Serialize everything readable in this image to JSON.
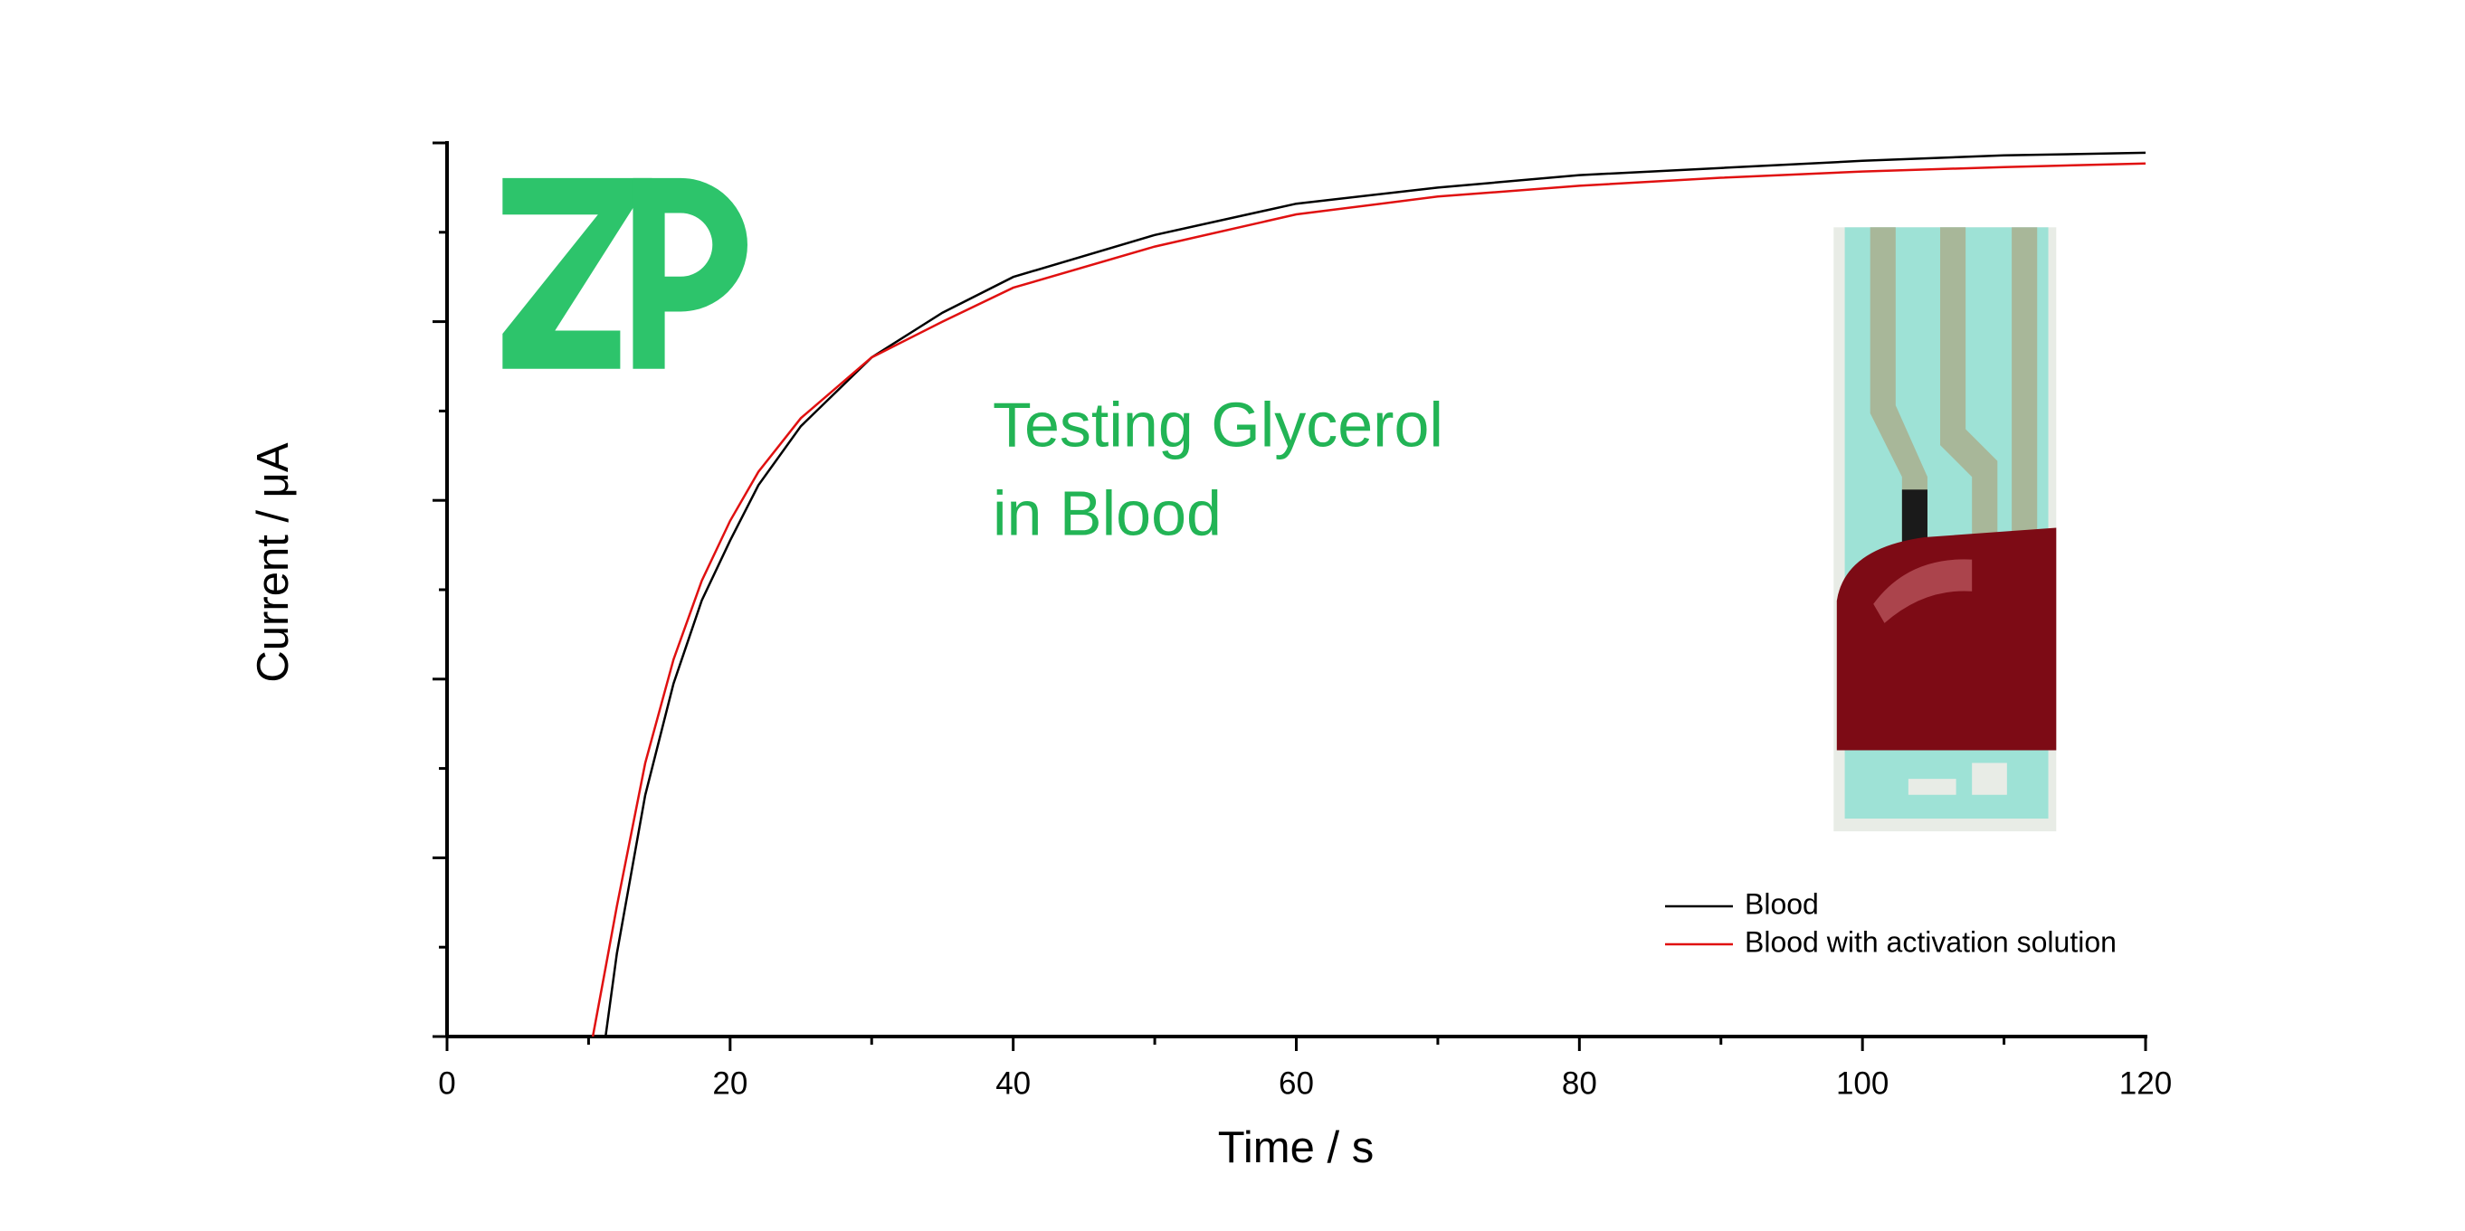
{
  "chart_data": {
    "type": "line",
    "annotation": [
      "Testing Glycerol",
      "in Blood"
    ],
    "xlabel": "Time / s",
    "ylabel": "Current / μA",
    "x": [
      10.3,
      11.2,
      12,
      14,
      16,
      18,
      20,
      22,
      25,
      30,
      35,
      40,
      50,
      60,
      70,
      80,
      90,
      100,
      110,
      120
    ],
    "series": [
      {
        "name": "Blood",
        "color": "#000000",
        "values": [
          null,
          0,
          0.93,
          2.7,
          3.95,
          4.88,
          5.55,
          6.17,
          6.83,
          7.6,
          8.1,
          8.5,
          8.97,
          9.32,
          9.5,
          9.64,
          9.72,
          9.8,
          9.86,
          9.89
        ]
      },
      {
        "name": "Blood with activation solution",
        "color": "#e01010",
        "values": [
          0,
          0.77,
          1.46,
          3.06,
          4.22,
          5.1,
          5.77,
          6.32,
          6.92,
          7.6,
          8.0,
          8.38,
          8.84,
          9.2,
          9.4,
          9.52,
          9.61,
          9.68,
          9.73,
          9.77
        ]
      }
    ],
    "xlim": [
      0,
      120
    ],
    "xticks": [
      0,
      20,
      40,
      60,
      80,
      100,
      120
    ],
    "ylim": [
      0,
      10
    ],
    "yticks": [
      0,
      2,
      4,
      6,
      8,
      10
    ],
    "show_ytick_labels": false,
    "grid": false,
    "legend": "lower right"
  }
}
